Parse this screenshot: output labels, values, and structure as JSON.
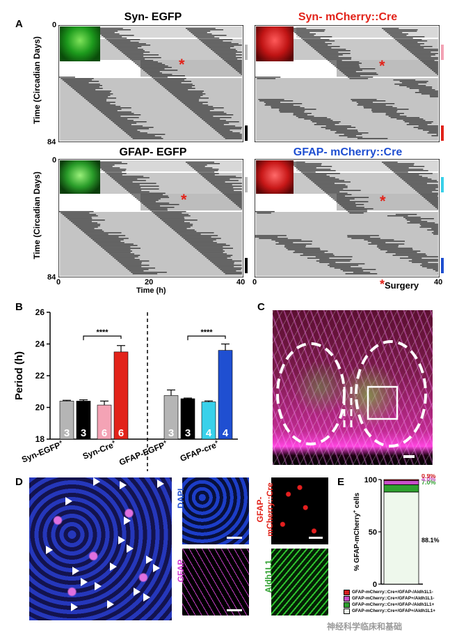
{
  "panel_letters": {
    "a": "A",
    "b": "B",
    "c": "C",
    "d": "D",
    "e": "E"
  },
  "panel_a": {
    "titles": [
      {
        "text": "Syn- EGFP",
        "color": "#000000"
      },
      {
        "text": "Syn- mCherry::Cre",
        "color": "#e2231a"
      },
      {
        "text": "GFAP- EGFP",
        "color": "#000000"
      },
      {
        "text": "GFAP- mCherry::Cre",
        "color": "#1f4fd1"
      }
    ],
    "y_axis_label": "Time (Circadian Days)",
    "y_ticks": [
      "0",
      "84"
    ],
    "x_axis_label": "Time (h)",
    "x_ticks": [
      "0",
      "20",
      "40"
    ],
    "surgery_label": "Surgery",
    "marker_colors": [
      "#b9b9b9",
      "#000000",
      "#f4a3b5",
      "#e2231a",
      "#b9b9b9",
      "#000000",
      "#39d1ea",
      "#1f4fd1"
    ]
  },
  "panel_b": {
    "chart_data": {
      "type": "bar",
      "ylabel": "Period (h)",
      "ylim": [
        18,
        26
      ],
      "yticks": [
        "18",
        "20",
        "22",
        "24",
        "26"
      ],
      "groups": [
        "Syn-EGFP",
        "Syn-Cre",
        "GFAP-EGFP",
        "GFAP-cre"
      ],
      "group_superscript": "+",
      "bars": [
        {
          "group": "Syn-EGFP",
          "value": 20.4,
          "err": 0.05,
          "n": "3",
          "color": "#b5b5b5"
        },
        {
          "group": "Syn-EGFP",
          "value": 20.4,
          "err": 0.08,
          "n": "3",
          "color": "#000000"
        },
        {
          "group": "Syn-Cre",
          "value": 20.15,
          "err": 0.25,
          "n": "6",
          "color": "#f4a3b5"
        },
        {
          "group": "Syn-Cre",
          "value": 23.5,
          "err": 0.4,
          "n": "6",
          "color": "#e2231a"
        },
        {
          "group": "GFAP-EGFP",
          "value": 20.75,
          "err": 0.35,
          "n": "3",
          "color": "#b5b5b5"
        },
        {
          "group": "GFAP-EGFP",
          "value": 20.55,
          "err": 0.04,
          "n": "3",
          "color": "#000000"
        },
        {
          "group": "GFAP-cre",
          "value": 20.35,
          "err": 0.06,
          "n": "4",
          "color": "#39d1ea"
        },
        {
          "group": "GFAP-cre",
          "value": 23.6,
          "err": 0.4,
          "n": "4",
          "color": "#1f4fd1"
        }
      ],
      "significance": "****"
    }
  },
  "panel_d": {
    "labels": {
      "dapi": "DAPI",
      "gfap_cre_1": "GFAP-",
      "gfap_cre_2": "mCherry::Cre",
      "gfap": "GFAP",
      "aldh": "Aldh1L1"
    }
  },
  "panel_e": {
    "chart_data": {
      "type": "bar",
      "stacked": true,
      "ylabel": "% GFAP-mCherry",
      "ylabel_sup": "+",
      "ylabel_tail": " cells",
      "ylim": [
        0,
        100
      ],
      "yticks": [
        "0",
        "50",
        "100"
      ],
      "segments": [
        {
          "value": 88.1,
          "label": "88.1%",
          "color": "#eef8ec",
          "legend": "GFAP-mCherry::Cre+/GFAP+/Aldh1L1+"
        },
        {
          "value": 7.0,
          "label": "7.0%",
          "color": "#2fa12f",
          "legend": "GFAP-mCherry::Cre+/GFAP-/Aldh1L1+"
        },
        {
          "value": 4.0,
          "label": "4.0%",
          "color": "#c94fc9",
          "legend": "GFAP-mCherry::Cre+/GFAP+/Aldh1L1-"
        },
        {
          "value": 0.9,
          "label": "0.9%",
          "color": "#d11f1f",
          "legend": "GFAP-mCherry::Cre+/GFAP-/Aldh1L1-"
        }
      ]
    }
  },
  "watermark": "神经科学临床和基础"
}
